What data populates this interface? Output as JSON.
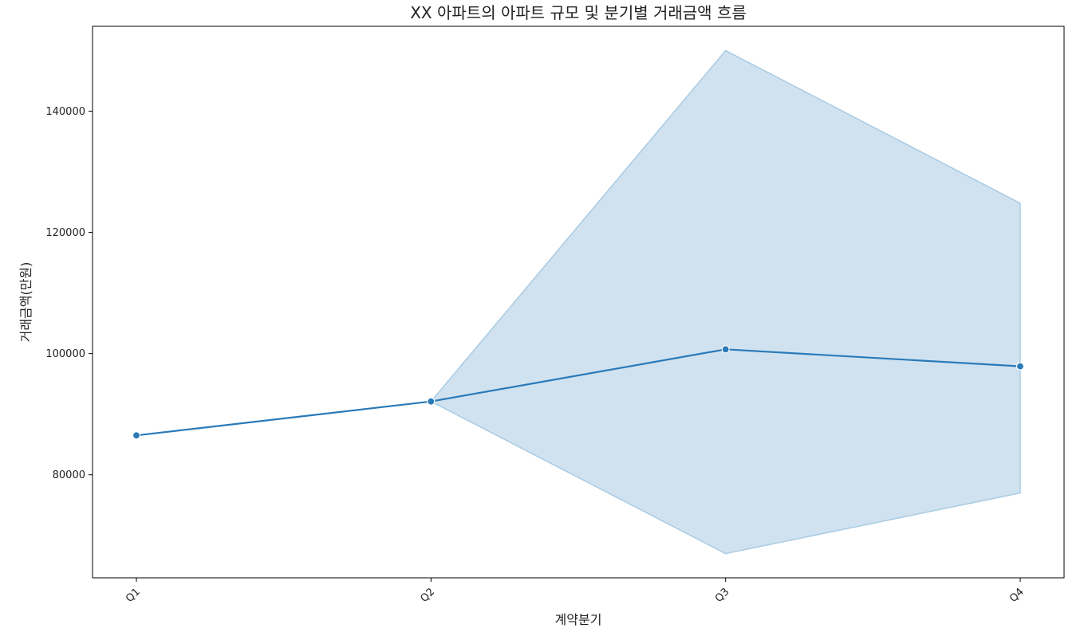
{
  "chart_data": {
    "type": "line",
    "title": "XX 아파트의 아파트 규모 및 분기별 거래금액 흐름",
    "xlabel": "계약분기",
    "ylabel": "거래금액(만원)",
    "categories": [
      "Q1",
      "Q2",
      "Q3",
      "Q4"
    ],
    "series": [
      {
        "values": [
          86500,
          92100,
          100700,
          97900
        ],
        "ci_lower": [
          86500,
          92100,
          67000,
          77000
        ],
        "ci_upper": [
          86500,
          92100,
          150000,
          124800
        ]
      }
    ],
    "yticks": [
      80000,
      100000,
      120000,
      140000
    ],
    "ytick_labels": [
      "80000",
      "100000",
      "120000",
      "140000"
    ],
    "ylim": [
      63000,
      154000
    ],
    "x_tick_rotation_deg": 45,
    "grid": false,
    "legend": false,
    "colors": {
      "line": "#2a7ab8",
      "band": "#a9cbe3",
      "axis": "#000000"
    }
  }
}
